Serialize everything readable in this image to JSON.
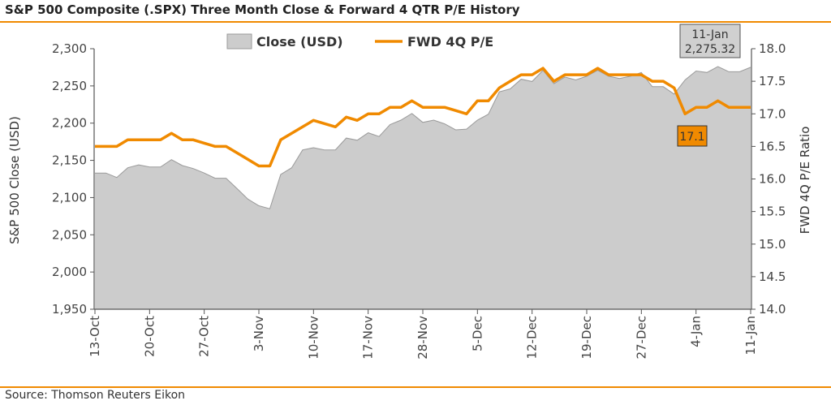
{
  "title": "S&P 500 Composite (.SPX) Three Month Close & Forward 4 QTR P/E History",
  "source": "Source: Thomson Reuters Eikon",
  "chart_data": {
    "type": "area+line",
    "title": "S&P 500 Composite (.SPX) Three Month Close & Forward 4 QTR P/E History",
    "ylabel": "S&P 500 Close (USD)",
    "y2label": "FWD 4Q P/E Ratio",
    "ylim": [
      1950,
      2300
    ],
    "y_ticks": [
      "2,300",
      "2,250",
      "2,200",
      "2,150",
      "2,100",
      "2,050",
      "2,000",
      "1,950"
    ],
    "y2lim": [
      14.0,
      18.0
    ],
    "y2_ticks": [
      "18.0",
      "17.5",
      "17.0",
      "16.5",
      "16.0",
      "15.5",
      "15.0",
      "14.5",
      "14.0"
    ],
    "x_ticks": [
      "13-Oct",
      "20-Oct",
      "27-Oct",
      "3-Nov",
      "10-Nov",
      "17-Nov",
      "28-Nov",
      "5-Dec",
      "12-Dec",
      "19-Dec",
      "27-Dec",
      "4-Jan",
      "11-Jan"
    ],
    "legend": {
      "position": "top-center",
      "close_label": "Close (USD)",
      "pe_label": "FWD 4Q P/E"
    },
    "colors": {
      "close_fill": "#cccccc",
      "close_stroke": "#9a9a9a",
      "pe_line": "#f08a00",
      "accent": "#f08a00"
    },
    "series": [
      {
        "name": "Close (USD)",
        "values": [
          2133,
          2133,
          2127,
          2140,
          2144,
          2141,
          2141,
          2151,
          2143,
          2139,
          2133,
          2126,
          2126,
          2112,
          2098,
          2089,
          2085,
          2131,
          2140,
          2164,
          2167,
          2164,
          2164,
          2180,
          2177,
          2187,
          2182,
          2198,
          2204,
          2213,
          2201,
          2204,
          2199,
          2191,
          2192,
          2204,
          2212,
          2242,
          2246,
          2259,
          2256,
          2271,
          2253,
          2262,
          2258,
          2263,
          2271,
          2263,
          2260,
          2263,
          2268,
          2249,
          2249,
          2239,
          2258,
          2270,
          2268,
          2276,
          2269,
          2269,
          2275
        ]
      },
      {
        "name": "FWD 4Q P/E",
        "values": [
          16.5,
          16.5,
          16.5,
          16.6,
          16.6,
          16.6,
          16.6,
          16.7,
          16.6,
          16.6,
          16.55,
          16.5,
          16.5,
          16.4,
          16.3,
          16.2,
          16.2,
          16.6,
          16.7,
          16.8,
          16.9,
          16.85,
          16.8,
          16.95,
          16.9,
          17.0,
          17.0,
          17.1,
          17.1,
          17.2,
          17.1,
          17.1,
          17.1,
          17.05,
          17.0,
          17.2,
          17.2,
          17.4,
          17.5,
          17.6,
          17.6,
          17.7,
          17.5,
          17.6,
          17.6,
          17.6,
          17.7,
          17.6,
          17.6,
          17.6,
          17.6,
          17.5,
          17.5,
          17.4,
          17.0,
          17.1,
          17.1,
          17.2,
          17.1,
          17.1,
          17.1
        ]
      }
    ],
    "annotations": [
      {
        "label": "11-Jan",
        "value": "2,275.32"
      },
      {
        "value": "17.1"
      }
    ]
  }
}
